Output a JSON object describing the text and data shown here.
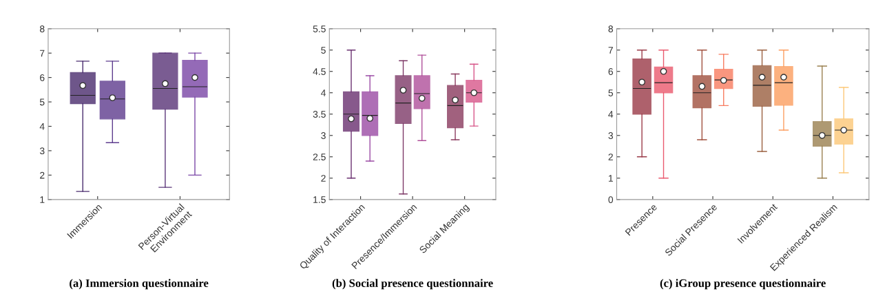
{
  "chart_data": [
    {
      "type": "box",
      "title": "(a) Immersion questionnaire",
      "categories": [
        "Immersion",
        "Person-Virtual\nEnvironment"
      ],
      "ylim": [
        1,
        8
      ],
      "yticks": [
        1,
        2,
        3,
        4,
        5,
        6,
        7,
        8
      ],
      "grid": false,
      "series": [
        {
          "colors": [
            "#4a2c6e",
            "#5a3478"
          ],
          "boxes": [
            {
              "low": 1.33,
              "q1": 4.93,
              "median": 5.27,
              "q3": 6.2,
              "high": 6.67,
              "mean": 5.67
            },
            {
              "low": 1.5,
              "q1": 4.7,
              "median": 5.55,
              "q3": 7,
              "high": 7,
              "mean": 5.75
            }
          ]
        },
        {
          "colors": [
            "#5e3c8e",
            "#7a46a6"
          ],
          "boxes": [
            {
              "low": 3.33,
              "q1": 4.3,
              "median": 5.12,
              "q3": 5.85,
              "high": 6.67,
              "mean": 5.17
            },
            {
              "low": 2.0,
              "q1": 5.2,
              "median": 5.62,
              "q3": 6.7,
              "high": 7,
              "mean": 6.0
            }
          ]
        }
      ]
    },
    {
      "type": "box",
      "title": "(b) Social presence questionnaire",
      "categories": [
        "Quality of Interaction",
        "Presence/Immersion",
        "Social Meaning"
      ],
      "ylim": [
        1.5,
        5.5
      ],
      "yticks": [
        1.5,
        2,
        2.5,
        3,
        3.5,
        4,
        4.5,
        5,
        5.5
      ],
      "grid": false,
      "series": [
        {
          "colors": [
            "#6a3070",
            "#7e3a68",
            "#8a3a5e"
          ],
          "boxes": [
            {
              "low": 2.0,
              "q1": 3.1,
              "median": 3.5,
              "q3": 4.02,
              "high": 5.0,
              "mean": 3.39
            },
            {
              "low": 1.63,
              "q1": 3.28,
              "median": 3.76,
              "q3": 4.4,
              "high": 4.75,
              "mean": 4.06
            },
            {
              "low": 2.9,
              "q1": 3.18,
              "median": 3.7,
              "q3": 4.17,
              "high": 4.44,
              "mean": 3.83
            }
          ]
        },
        {
          "colors": [
            "#9a4aa4",
            "#b0509a",
            "#d8578a"
          ],
          "boxes": [
            {
              "low": 2.4,
              "q1": 3.0,
              "median": 3.47,
              "q3": 4.02,
              "high": 4.4,
              "mean": 3.4
            },
            {
              "low": 2.88,
              "q1": 3.63,
              "median": 3.98,
              "q3": 4.4,
              "high": 4.88,
              "mean": 3.87
            },
            {
              "low": 3.22,
              "q1": 3.78,
              "median": 4.0,
              "q3": 4.29,
              "high": 4.67,
              "mean": 4.0
            }
          ]
        }
      ]
    },
    {
      "type": "box",
      "title": "(c) iGroup presence questionnaire",
      "categories": [
        "Presence",
        "Social Presence",
        "Involvement",
        "Experienced Realism"
      ],
      "ylim": [
        0,
        8
      ],
      "yticks": [
        0,
        1,
        2,
        3,
        4,
        5,
        6,
        7,
        8
      ],
      "grid": false,
      "series": [
        {
          "colors": [
            "#9a3a48",
            "#a0503e",
            "#9a6040",
            "#9a8050"
          ],
          "boxes": [
            {
              "low": 2.0,
              "q1": 4.0,
              "median": 5.2,
              "q3": 6.58,
              "high": 7,
              "mean": 5.5
            },
            {
              "low": 2.8,
              "q1": 4.3,
              "median": 5.0,
              "q3": 5.8,
              "high": 7,
              "mean": 5.3
            },
            {
              "low": 2.25,
              "q1": 4.37,
              "median": 5.35,
              "q3": 6.27,
              "high": 7,
              "mean": 5.73
            },
            {
              "low": 1.0,
              "q1": 2.5,
              "median": 3.0,
              "q3": 3.65,
              "high": 6.25,
              "mean": 3.0
            }
          ]
        },
        {
          "colors": [
            "#ea5a6e",
            "#f87c60",
            "#fc9e60",
            "#fcc878"
          ],
          "boxes": [
            {
              "low": 1.0,
              "q1": 5.0,
              "median": 5.47,
              "q3": 6.2,
              "high": 7,
              "mean": 6.0
            },
            {
              "low": 4.4,
              "q1": 5.2,
              "median": 5.6,
              "q3": 6.1,
              "high": 6.8,
              "mean": 5.58
            },
            {
              "low": 3.25,
              "q1": 4.42,
              "median": 5.47,
              "q3": 6.23,
              "high": 7,
              "mean": 5.73
            },
            {
              "low": 1.25,
              "q1": 2.6,
              "median": 3.25,
              "q3": 3.78,
              "high": 5.25,
              "mean": 3.25
            }
          ]
        }
      ]
    }
  ]
}
